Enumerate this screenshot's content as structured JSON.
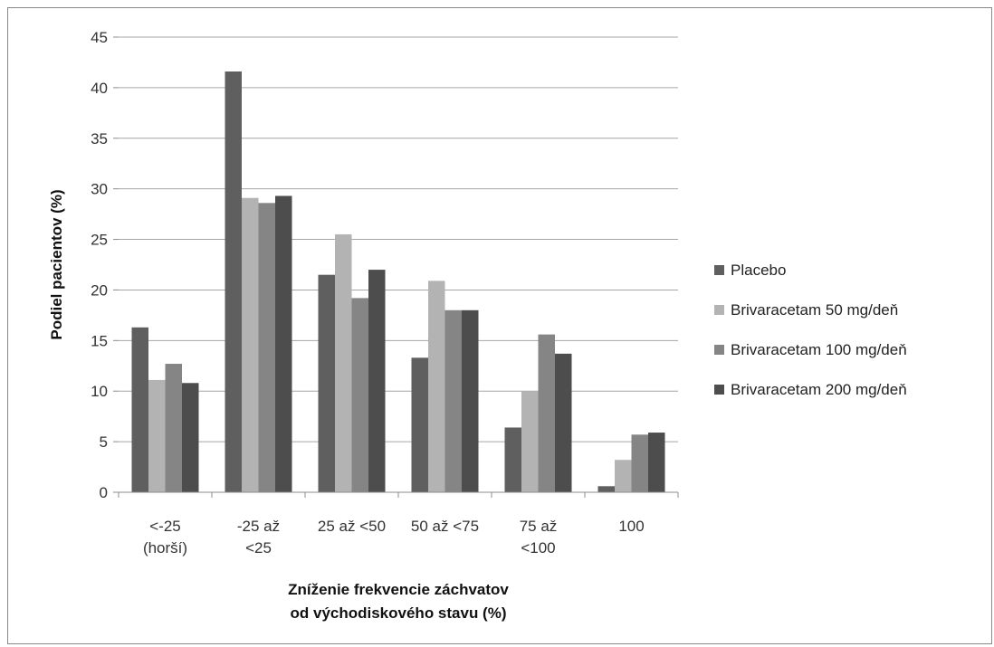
{
  "chart_data": {
    "type": "bar",
    "title": "",
    "categories": [
      [
        "<-25",
        "(horší)"
      ],
      [
        "-25 až",
        "<25"
      ],
      [
        "25 až <50"
      ],
      [
        "50 až <75"
      ],
      [
        "75 až",
        "<100"
      ],
      [
        "100"
      ]
    ],
    "series": [
      {
        "name": "Placebo",
        "color": "#5f5f5f",
        "values": [
          16.3,
          41.6,
          21.5,
          13.3,
          6.4,
          0.6
        ]
      },
      {
        "name": "Brivaracetam 50 mg/deň",
        "color": "#b3b3b3",
        "values": [
          11.1,
          29.1,
          25.5,
          20.9,
          10.0,
          3.2
        ]
      },
      {
        "name": "Brivaracetam 100 mg/deň",
        "color": "#858585",
        "values": [
          12.7,
          28.6,
          19.2,
          18.0,
          15.6,
          5.7
        ]
      },
      {
        "name": "Brivaracetam 200 mg/deň",
        "color": "#4d4d4d",
        "values": [
          10.8,
          29.3,
          22.0,
          18.0,
          13.7,
          5.9
        ]
      }
    ],
    "ylabel": "Podiel pacientov (%)",
    "xlabel": [
      "Zníženie frekvencie záchvatov",
      "od východiskového  stavu (%)"
    ],
    "ylim": [
      0,
      45
    ],
    "yticks": [
      0,
      5,
      10,
      15,
      20,
      25,
      30,
      35,
      40,
      45
    ],
    "grid": true,
    "legend_position": "right"
  }
}
